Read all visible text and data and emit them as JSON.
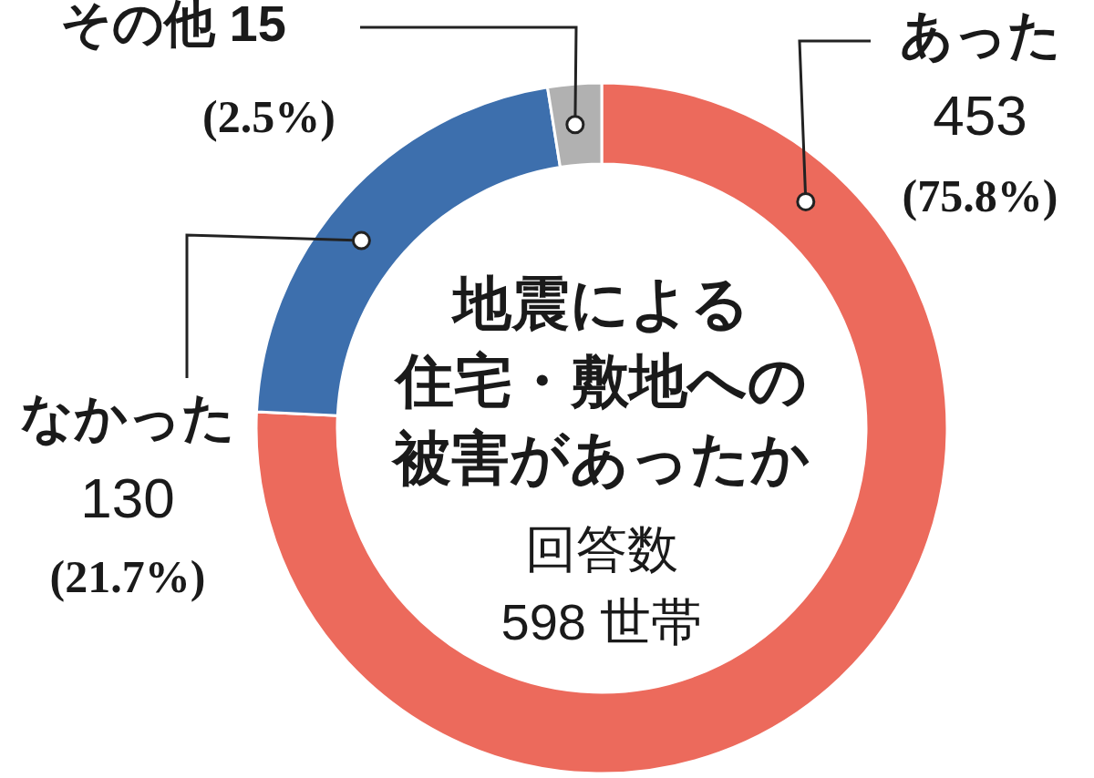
{
  "chart_data": {
    "type": "donut",
    "title": "地震による住宅・敷地への被害があったか",
    "annotations": [
      "回答数 598 世帯"
    ],
    "categories": [
      "あった",
      "なかった",
      "その他"
    ],
    "values": [
      453,
      130,
      15
    ],
    "colors": [
      "#ec6a5c",
      "#3d6fad",
      "#b1b1b1"
    ],
    "value_labels": [
      "453\n(75.8%)",
      "130\n(21.7%)",
      "15\n(2.5%)"
    ]
  }
}
